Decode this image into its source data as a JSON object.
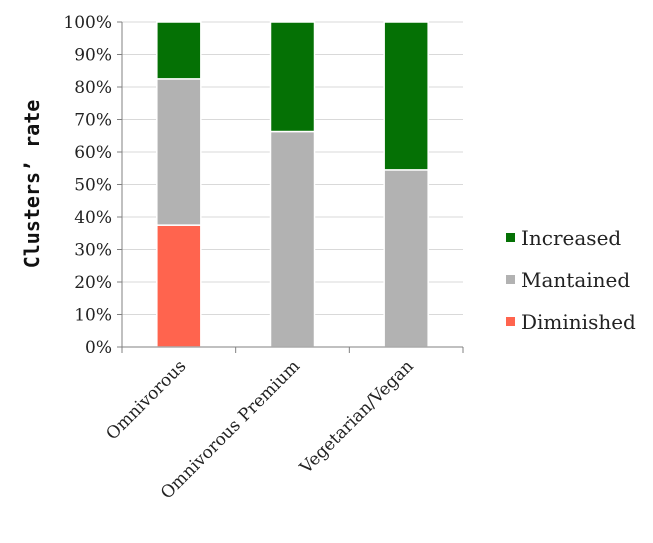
{
  "chart_data": {
    "type": "bar",
    "stacked": true,
    "categories": [
      "Omnivorous",
      "Omnivorous Premium",
      "Vegetarian/Vegan"
    ],
    "series": [
      {
        "name": "Diminished",
        "color": "#ff644e",
        "values": [
          37.5,
          0,
          0
        ]
      },
      {
        "name": "Mantained",
        "color": "#b2b2b2",
        "values": [
          45.0,
          66.3,
          54.5
        ]
      },
      {
        "name": "Increased",
        "color": "#057105",
        "values": [
          17.5,
          33.7,
          45.5
        ]
      }
    ],
    "title": "",
    "xlabel": "",
    "ylabel": "Clusters’ rate",
    "ylim": [
      0,
      100
    ],
    "ytick_labels": [
      "0%",
      "10%",
      "20%",
      "30%",
      "40%",
      "50%",
      "60%",
      "70%",
      "80%",
      "90%",
      "100%"
    ],
    "grid": true,
    "legend": {
      "position": "right",
      "entries": [
        "Increased",
        "Mantained",
        "Diminished"
      ]
    }
  }
}
